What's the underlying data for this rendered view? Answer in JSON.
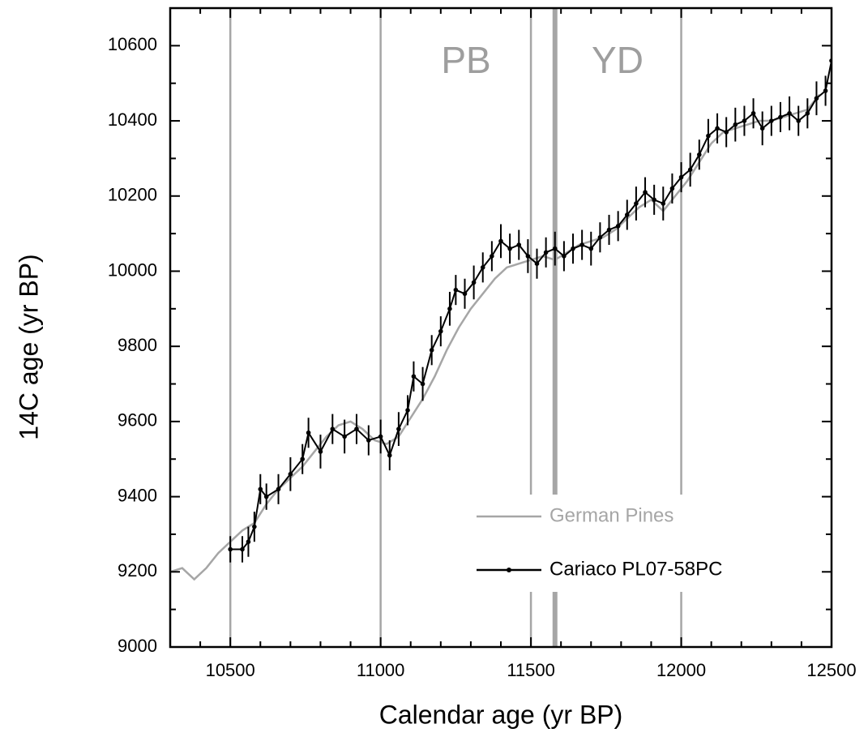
{
  "chart_data": {
    "type": "line",
    "x_label": "Calendar age (yr BP)",
    "y_label": "14C age (yr BP)",
    "xlim": [
      10300,
      12500
    ],
    "ylim": [
      9000,
      10700
    ],
    "xticks": [
      10500,
      11000,
      11500,
      12000,
      12500
    ],
    "yticks": [
      9000,
      9200,
      9400,
      9600,
      9800,
      10000,
      10200,
      10400,
      10600
    ],
    "vlines": [
      10500,
      11000,
      11500,
      11580,
      12000
    ],
    "annotations": [
      "PB",
      "YD"
    ],
    "series": [
      {
        "name": "German Pines",
        "color": "#a6a6a6",
        "x": [
          10300,
          10340,
          10380,
          10420,
          10460,
          10500,
          10540,
          10580,
          10620,
          10660,
          10700,
          10740,
          10780,
          10820,
          10860,
          10900,
          10940,
          10980,
          11020,
          11060,
          11100,
          11140,
          11180,
          11220,
          11260,
          11300,
          11340,
          11380,
          11420,
          11460,
          11500,
          11540,
          11580,
          11620,
          11660,
          11700,
          11740,
          11780,
          11820,
          11860,
          11900,
          11940,
          11980,
          12020,
          12060,
          12100,
          12140,
          12180,
          12220,
          12260,
          12300,
          12340,
          12380,
          12420,
          12460
        ],
        "values": [
          9200,
          9210,
          9180,
          9210,
          9250,
          9280,
          9310,
          9330,
          9380,
          9420,
          9450,
          9480,
          9520,
          9560,
          9590,
          9600,
          9580,
          9550,
          9540,
          9560,
          9610,
          9660,
          9720,
          9790,
          9850,
          9900,
          9940,
          9980,
          10010,
          10020,
          10030,
          10040,
          10030,
          10050,
          10070,
          10080,
          10090,
          10110,
          10140,
          10170,
          10190,
          10160,
          10200,
          10240,
          10290,
          10340,
          10370,
          10380,
          10390,
          10400,
          10400,
          10410,
          10420,
          10430,
          10470
        ]
      },
      {
        "name": "Cariaco PL07-58PC",
        "color": "#000000",
        "x": [
          10500,
          10540,
          10560,
          10580,
          10600,
          10620,
          10660,
          10700,
          10740,
          10760,
          10800,
          10840,
          10880,
          10920,
          10960,
          11000,
          11030,
          11060,
          11090,
          11110,
          11140,
          11170,
          11200,
          11230,
          11250,
          11280,
          11310,
          11340,
          11370,
          11400,
          11430,
          11460,
          11490,
          11520,
          11550,
          11580,
          11610,
          11640,
          11670,
          11700,
          11730,
          11760,
          11790,
          11820,
          11850,
          11880,
          11910,
          11940,
          11970,
          12000,
          12030,
          12060,
          12090,
          12120,
          12150,
          12180,
          12210,
          12240,
          12270,
          12300,
          12330,
          12360,
          12390,
          12420,
          12450,
          12480,
          12500
        ],
        "values": [
          9260,
          9260,
          9280,
          9320,
          9420,
          9400,
          9420,
          9460,
          9500,
          9570,
          9520,
          9580,
          9560,
          9580,
          9550,
          9560,
          9510,
          9580,
          9630,
          9720,
          9700,
          9790,
          9840,
          9900,
          9950,
          9940,
          9970,
          10010,
          10040,
          10080,
          10060,
          10070,
          10040,
          10020,
          10050,
          10060,
          10040,
          10060,
          10070,
          10060,
          10090,
          10110,
          10120,
          10150,
          10180,
          10210,
          10190,
          10180,
          10220,
          10250,
          10270,
          10310,
          10360,
          10380,
          10370,
          10390,
          10400,
          10420,
          10380,
          10400,
          10410,
          10420,
          10400,
          10420,
          10460,
          10480,
          10560
        ],
        "errors": [
          35,
          35,
          40,
          40,
          40,
          35,
          40,
          45,
          40,
          40,
          45,
          40,
          45,
          40,
          40,
          45,
          40,
          45,
          40,
          40,
          45,
          40,
          40,
          45,
          40,
          40,
          45,
          40,
          40,
          45,
          40,
          40,
          45,
          40,
          40,
          45,
          40,
          40,
          40,
          45,
          40,
          40,
          40,
          40,
          45,
          40,
          40,
          45,
          40,
          40,
          45,
          40,
          45,
          40,
          40,
          45,
          40,
          40,
          45,
          40,
          40,
          45,
          40,
          40,
          45,
          40,
          45
        ]
      }
    ]
  }
}
